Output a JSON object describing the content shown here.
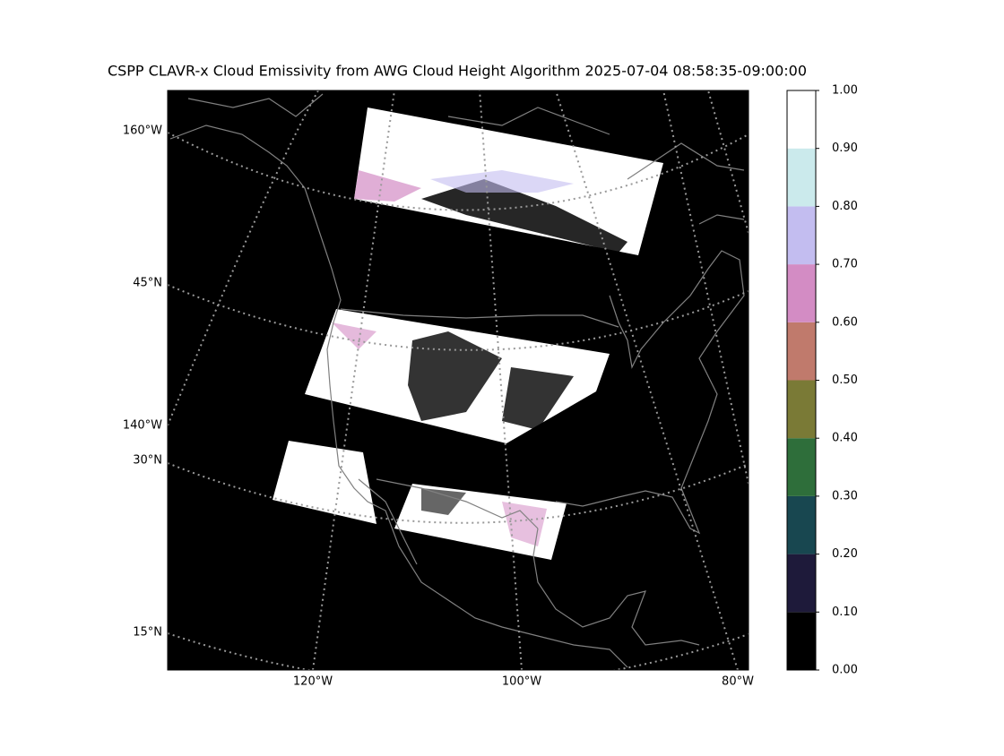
{
  "title": "CSPP CLAVR-x Cloud Emissivity from AWG Cloud Height Algorithm 2025-07-04 08:58:35-09:00:00",
  "map": {
    "left_labels": [
      "160°W",
      "45°N",
      "140°W",
      "30°N",
      "15°N"
    ],
    "bottom_labels": [
      "120°W",
      "100°W",
      "80°W"
    ]
  },
  "colorbar": {
    "lim": [
      0,
      1
    ],
    "ticks": [
      {
        "value": 0,
        "label": "0.00"
      },
      {
        "value": 0.1,
        "label": "0.10"
      },
      {
        "value": 0.2,
        "label": "0.20"
      },
      {
        "value": 0.3,
        "label": "0.30"
      },
      {
        "value": 0.4,
        "label": "0.40"
      },
      {
        "value": 0.5,
        "label": "0.50"
      },
      {
        "value": 0.6,
        "label": "0.60"
      },
      {
        "value": 0.7,
        "label": "0.70"
      },
      {
        "value": 0.8,
        "label": "0.80"
      },
      {
        "value": 0.9,
        "label": "0.90"
      },
      {
        "value": 1,
        "label": "1.00"
      }
    ],
    "colors": [
      "#000000",
      "#1e1a3a",
      "#184750",
      "#2e6e3a",
      "#7a7a36",
      "#c07a6c",
      "#d38cc4",
      "#c3bdf0",
      "#cbeaec",
      "#ffffff"
    ]
  }
}
